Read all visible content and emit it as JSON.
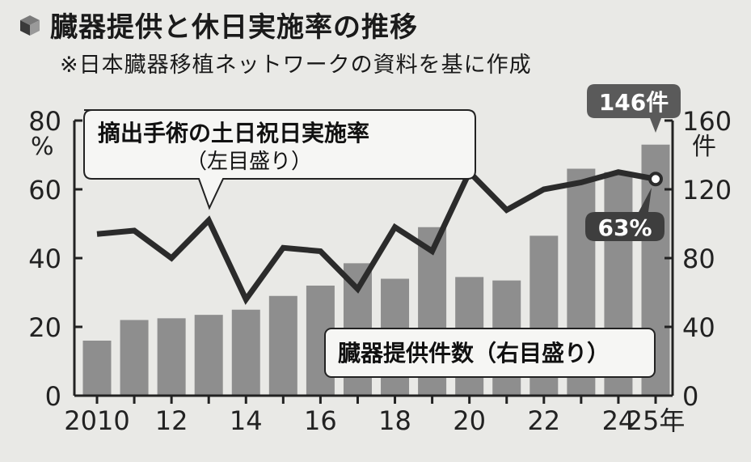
{
  "header": {
    "title": "臓器提供と休日実施率の推移",
    "subtitle": "※日本臓器移植ネットワークの資料を基に作成"
  },
  "chart_data": {
    "type": "bar+line",
    "x": [
      2010,
      2011,
      2012,
      2013,
      2014,
      2015,
      2016,
      2017,
      2018,
      2019,
      2020,
      2021,
      2022,
      2023,
      2024,
      2025
    ],
    "x_tick_labels": [
      "2010",
      "12",
      "14",
      "16",
      "18",
      "20",
      "22",
      "24",
      "25年"
    ],
    "x_tick_positions": [
      2010,
      2012,
      2014,
      2016,
      2018,
      2020,
      2022,
      2024,
      2025
    ],
    "series": [
      {
        "name": "臓器提供件数（右目盛り）",
        "type": "bar",
        "axis": "right",
        "values": [
          32,
          44,
          45,
          47,
          50,
          58,
          64,
          77,
          68,
          98,
          69,
          67,
          93,
          132,
          130,
          146
        ]
      },
      {
        "name": "摘出手術の土日祝日実施率（左目盛り）",
        "type": "line",
        "axis": "left",
        "values": [
          47,
          48,
          40,
          51,
          28,
          43,
          42,
          31,
          49,
          42,
          65,
          54,
          60,
          62,
          65,
          63
        ]
      }
    ],
    "left_axis": {
      "ticks": [
        0,
        20,
        40,
        60,
        80
      ],
      "unit": "%",
      "ylim": [
        0,
        80
      ]
    },
    "right_axis": {
      "ticks": [
        0,
        40,
        80,
        120,
        160
      ],
      "unit": "件",
      "ylim": [
        0,
        160
      ]
    },
    "annotations": {
      "last_bar_label": "146件",
      "last_line_label": "63%",
      "line_callout_line1": "摘出手術の土日祝日実施率",
      "line_callout_line2": "（左目盛り）",
      "bar_label": "臓器提供件数（右目盛り）"
    },
    "grid": false,
    "colors": {
      "bar": "#8e8e8e",
      "line": "#2b2b2b",
      "badge": "#5a5a5a",
      "background": "#e9e9e6"
    }
  }
}
